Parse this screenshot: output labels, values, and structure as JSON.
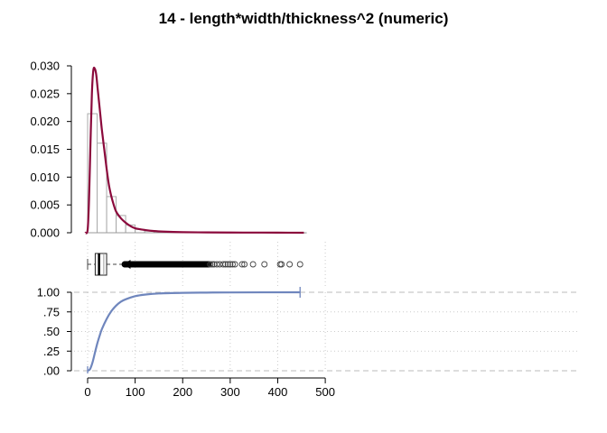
{
  "chart_data": {
    "title": "14 - length*width/thickness^2 (numeric)",
    "type": "histogram+density+boxplot+ecdf",
    "x_axis": {
      "range": [
        -10,
        500
      ],
      "ticks": [
        0,
        100,
        200,
        300,
        400,
        500
      ],
      "tick_labels": [
        "0",
        "100",
        "200",
        "300",
        "400",
        "500"
      ]
    },
    "histogram": {
      "y_range": [
        0,
        0.03
      ],
      "y_ticks": [
        0,
        0.005,
        0.01,
        0.015,
        0.02,
        0.025,
        0.03
      ],
      "y_tick_labels": [
        "0.000",
        "0.005",
        "0.010",
        "0.015",
        "0.020",
        "0.025",
        "0.030"
      ],
      "bin_edges": [
        0,
        20,
        40,
        60,
        80,
        100,
        120,
        140,
        160,
        180,
        200,
        220,
        240,
        260,
        280,
        300,
        320,
        340,
        360,
        380,
        400,
        420,
        440,
        460
      ],
      "density": [
        0.0214,
        0.0161,
        0.0065,
        0.0031,
        0.0014,
        0.0006,
        0.0003,
        0.0002,
        0.00015,
        0.0001,
        8e-05,
        6e-05,
        5e-05,
        4e-05,
        3e-05,
        3e-05,
        2e-05,
        2e-05,
        2e-05,
        2e-05,
        2e-05,
        1e-05,
        1e-05
      ],
      "bar_color": "#aaaaaa"
    },
    "density_curve": {
      "color": "#8b0a3c",
      "x": [
        -5,
        0,
        3,
        6,
        9,
        12,
        15,
        18,
        21,
        24,
        27,
        30,
        35,
        40,
        45,
        50,
        55,
        60,
        70,
        80,
        90,
        100,
        120,
        140,
        160,
        200,
        250,
        300,
        350,
        400,
        455
      ],
      "y": [
        0,
        0.0005,
        0.006,
        0.016,
        0.025,
        0.0292,
        0.0295,
        0.0285,
        0.026,
        0.0235,
        0.021,
        0.0185,
        0.015,
        0.0115,
        0.0085,
        0.0065,
        0.005,
        0.0038,
        0.0026,
        0.0018,
        0.0012,
        0.0008,
        0.0005,
        0.0003,
        0.0002,
        0.0001,
        6e-05,
        4e-05,
        3e-05,
        2e-05,
        0
      ]
    },
    "boxplot": {
      "whisker_low": 0,
      "q1": 16,
      "median": 24,
      "q3": 40,
      "whisker_high": 78,
      "mean": 34,
      "outliers_dense_range": [
        78,
        255
      ],
      "outliers_sparse": [
        258,
        262,
        266,
        272,
        278,
        285,
        290,
        295,
        300,
        305,
        310,
        325,
        330,
        348,
        372,
        405,
        408,
        425,
        447
      ]
    },
    "ecdf": {
      "color": "#6f86bd",
      "y_range": [
        0,
        1
      ],
      "y_ticks": [
        0,
        0.25,
        0.5,
        0.75,
        1
      ],
      "y_tick_labels": [
        ".00",
        ".25",
        ".50",
        ".75",
        "1.00"
      ],
      "x": [
        0,
        5,
        10,
        15,
        20,
        25,
        30,
        40,
        50,
        60,
        70,
        80,
        100,
        120,
        150,
        200,
        250,
        300,
        447
      ],
      "y": [
        0,
        0.02,
        0.1,
        0.22,
        0.34,
        0.44,
        0.53,
        0.66,
        0.76,
        0.83,
        0.88,
        0.91,
        0.95,
        0.97,
        0.985,
        0.993,
        0.996,
        0.998,
        1.0
      ]
    }
  }
}
